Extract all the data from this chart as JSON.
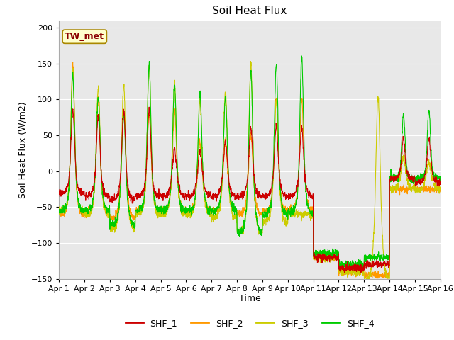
{
  "title": "Soil Heat Flux",
  "xlabel": "Time",
  "ylabel": "Soil Heat Flux (W/m2)",
  "ylim": [
    -150,
    210
  ],
  "yticks": [
    -150,
    -100,
    -50,
    0,
    50,
    100,
    150,
    200
  ],
  "xlim": [
    0,
    15
  ],
  "xtick_labels": [
    "Apr 1",
    "Apr 2",
    "Apr 3",
    "Apr 4",
    "Apr 5",
    "Apr 6",
    "Apr 7",
    "Apr 8",
    "Apr 9",
    "Apr 10",
    "Apr 11",
    "Apr 12",
    "Apr 13",
    "Apr 14",
    "Apr 15",
    "Apr 16"
  ],
  "colors": {
    "SHF_1": "#cc0000",
    "SHF_2": "#ff9900",
    "SHF_3": "#cccc00",
    "SHF_4": "#00cc00"
  },
  "legend_label": "TW_met",
  "legend_bg": "#ffffcc",
  "legend_border": "#aa8800",
  "plot_bg": "#e8e8e8",
  "fig_bg": "#ffffff",
  "grid_color": "#ffffff",
  "linewidth": 0.8,
  "title_fontsize": 11,
  "axis_label_fontsize": 9,
  "tick_fontsize": 8
}
